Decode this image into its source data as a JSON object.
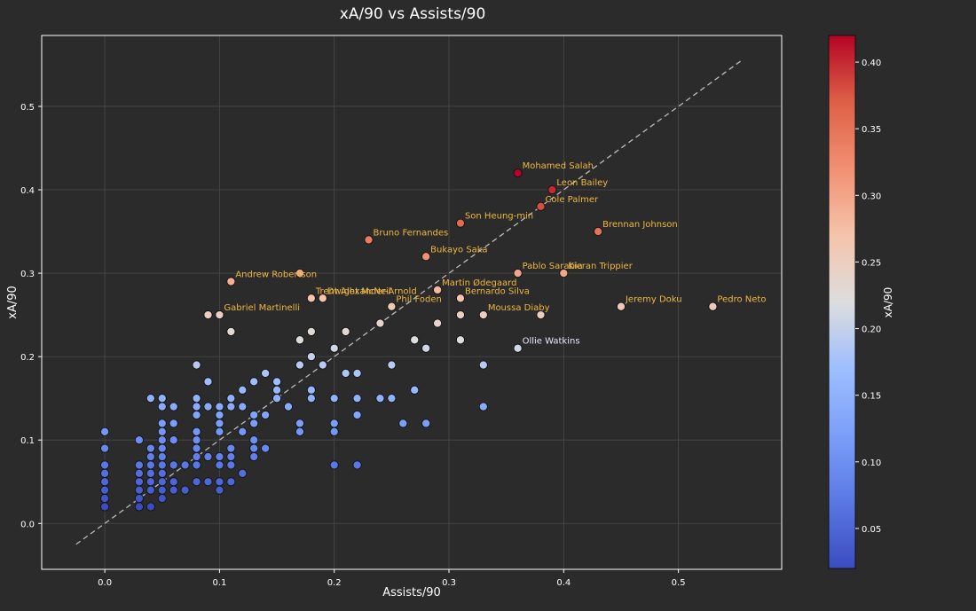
{
  "chart_data": {
    "type": "scatter",
    "title": "xA/90 vs Assists/90",
    "xlabel": "Assists/90",
    "ylabel": "xA/90",
    "xlim": [
      -0.055,
      0.59
    ],
    "ylim": [
      -0.055,
      0.585
    ],
    "x_ticks": [
      "0.0",
      "0.1",
      "0.2",
      "0.3",
      "0.4",
      "0.5"
    ],
    "y_ticks": [
      "0.0",
      "0.1",
      "0.2",
      "0.3",
      "0.4",
      "0.5"
    ],
    "grid": true,
    "reference_line": {
      "style": "dashed",
      "from": [
        -0.025,
        -0.025
      ],
      "to": [
        0.555,
        0.555
      ]
    },
    "colorbar": {
      "label": "xA/90",
      "colormap": "coolwarm",
      "range": [
        0.02,
        0.42
      ],
      "ticks": [
        "0.05",
        "0.10",
        "0.15",
        "0.20",
        "0.25",
        "0.30",
        "0.35",
        "0.40"
      ]
    },
    "colors": {
      "background": "#2b2b2b",
      "axis": "#ffffff",
      "grid": "#4a4a4a",
      "label_highlight": "#f0b840",
      "label_plain": "#e8e8ff",
      "marker_edge": "#111111"
    },
    "labeled_points": [
      {
        "name": "Mohamed Salah",
        "x": 0.36,
        "y": 0.42
      },
      {
        "name": "Leon Bailey",
        "x": 0.39,
        "y": 0.4
      },
      {
        "name": "Cole Palmer",
        "x": 0.38,
        "y": 0.38
      },
      {
        "name": "Son Heung-min",
        "x": 0.31,
        "y": 0.36
      },
      {
        "name": "Brennan Johnson",
        "x": 0.43,
        "y": 0.35
      },
      {
        "name": "Bruno Fernandes",
        "x": 0.23,
        "y": 0.34
      },
      {
        "name": "Bukayo Saka",
        "x": 0.28,
        "y": 0.32
      },
      {
        "name": "Andrew Robertson",
        "x": 0.11,
        "y": 0.29
      },
      {
        "name": "Pablo Sarabia",
        "x": 0.36,
        "y": 0.3
      },
      {
        "name": "Kieran Trippier",
        "x": 0.4,
        "y": 0.3
      },
      {
        "name": "Trent Alexander-Arnold",
        "x": 0.18,
        "y": 0.27
      },
      {
        "name": "Martin Ødegaard",
        "x": 0.29,
        "y": 0.28
      },
      {
        "name": "Dwight McNeil",
        "x": 0.19,
        "y": 0.27
      },
      {
        "name": "Bernardo Silva",
        "x": 0.31,
        "y": 0.27
      },
      {
        "name": "Phil Foden",
        "x": 0.25,
        "y": 0.26
      },
      {
        "name": "Gabriel Martinelli",
        "x": 0.1,
        "y": 0.25
      },
      {
        "name": "Moussa Diaby",
        "x": 0.33,
        "y": 0.25
      },
      {
        "name": "Jeremy Doku",
        "x": 0.45,
        "y": 0.26
      },
      {
        "name": "Pedro Neto",
        "x": 0.53,
        "y": 0.26
      },
      {
        "name": "Ollie Watkins",
        "x": 0.36,
        "y": 0.21
      }
    ],
    "points": [
      [
        0.17,
        0.3
      ],
      [
        0.09,
        0.25
      ],
      [
        0.1,
        0.25
      ],
      [
        0.29,
        0.24
      ],
      [
        0.24,
        0.24
      ],
      [
        0.31,
        0.25
      ],
      [
        0.38,
        0.25
      ],
      [
        0.11,
        0.23
      ],
      [
        0.18,
        0.23
      ],
      [
        0.21,
        0.23
      ],
      [
        0.17,
        0.22
      ],
      [
        0.27,
        0.22
      ],
      [
        0.31,
        0.22
      ],
      [
        0.2,
        0.21
      ],
      [
        0.28,
        0.21
      ],
      [
        0.18,
        0.2
      ],
      [
        0.08,
        0.19
      ],
      [
        0.17,
        0.19
      ],
      [
        0.19,
        0.19
      ],
      [
        0.25,
        0.19
      ],
      [
        0.33,
        0.19
      ],
      [
        0.14,
        0.18
      ],
      [
        0.21,
        0.18
      ],
      [
        0.22,
        0.18
      ],
      [
        0.09,
        0.17
      ],
      [
        0.13,
        0.17
      ],
      [
        0.15,
        0.17
      ],
      [
        0.12,
        0.16
      ],
      [
        0.15,
        0.16
      ],
      [
        0.18,
        0.16
      ],
      [
        0.27,
        0.16
      ],
      [
        0.04,
        0.15
      ],
      [
        0.05,
        0.15
      ],
      [
        0.08,
        0.15
      ],
      [
        0.11,
        0.15
      ],
      [
        0.15,
        0.15
      ],
      [
        0.18,
        0.15
      ],
      [
        0.2,
        0.15
      ],
      [
        0.22,
        0.15
      ],
      [
        0.24,
        0.15
      ],
      [
        0.25,
        0.15
      ],
      [
        0.05,
        0.14
      ],
      [
        0.06,
        0.14
      ],
      [
        0.08,
        0.14
      ],
      [
        0.09,
        0.14
      ],
      [
        0.1,
        0.14
      ],
      [
        0.11,
        0.14
      ],
      [
        0.12,
        0.14
      ],
      [
        0.16,
        0.14
      ],
      [
        0.33,
        0.14
      ],
      [
        0.08,
        0.13
      ],
      [
        0.1,
        0.13
      ],
      [
        0.13,
        0.13
      ],
      [
        0.14,
        0.13
      ],
      [
        0.22,
        0.13
      ],
      [
        0.05,
        0.12
      ],
      [
        0.06,
        0.12
      ],
      [
        0.1,
        0.12
      ],
      [
        0.13,
        0.12
      ],
      [
        0.17,
        0.12
      ],
      [
        0.2,
        0.12
      ],
      [
        0.26,
        0.12
      ],
      [
        0.28,
        0.12
      ],
      [
        0.05,
        0.11
      ],
      [
        0.08,
        0.11
      ],
      [
        0.1,
        0.11
      ],
      [
        0.12,
        0.11
      ],
      [
        0.17,
        0.11
      ],
      [
        0.2,
        0.11
      ],
      [
        0.0,
        0.11
      ],
      [
        0.03,
        0.1
      ],
      [
        0.05,
        0.1
      ],
      [
        0.06,
        0.1
      ],
      [
        0.08,
        0.1
      ],
      [
        0.13,
        0.1
      ],
      [
        0.0,
        0.09
      ],
      [
        0.04,
        0.09
      ],
      [
        0.05,
        0.09
      ],
      [
        0.08,
        0.09
      ],
      [
        0.11,
        0.09
      ],
      [
        0.13,
        0.09
      ],
      [
        0.14,
        0.09
      ],
      [
        0.04,
        0.08
      ],
      [
        0.05,
        0.08
      ],
      [
        0.08,
        0.08
      ],
      [
        0.09,
        0.08
      ],
      [
        0.1,
        0.08
      ],
      [
        0.11,
        0.08
      ],
      [
        0.13,
        0.08
      ],
      [
        0.0,
        0.07
      ],
      [
        0.03,
        0.07
      ],
      [
        0.04,
        0.07
      ],
      [
        0.05,
        0.07
      ],
      [
        0.06,
        0.07
      ],
      [
        0.07,
        0.07
      ],
      [
        0.08,
        0.07
      ],
      [
        0.1,
        0.07
      ],
      [
        0.11,
        0.07
      ],
      [
        0.2,
        0.07
      ],
      [
        0.22,
        0.07
      ],
      [
        0.0,
        0.06
      ],
      [
        0.03,
        0.06
      ],
      [
        0.04,
        0.06
      ],
      [
        0.05,
        0.06
      ],
      [
        0.12,
        0.06
      ],
      [
        0.0,
        0.05
      ],
      [
        0.03,
        0.05
      ],
      [
        0.04,
        0.05
      ],
      [
        0.05,
        0.05
      ],
      [
        0.06,
        0.05
      ],
      [
        0.08,
        0.05
      ],
      [
        0.09,
        0.05
      ],
      [
        0.1,
        0.05
      ],
      [
        0.11,
        0.05
      ],
      [
        0.0,
        0.04
      ],
      [
        0.03,
        0.04
      ],
      [
        0.04,
        0.04
      ],
      [
        0.05,
        0.04
      ],
      [
        0.06,
        0.04
      ],
      [
        0.07,
        0.04
      ],
      [
        0.1,
        0.04
      ],
      [
        0.0,
        0.03
      ],
      [
        0.03,
        0.03
      ],
      [
        0.05,
        0.03
      ],
      [
        0.0,
        0.02
      ],
      [
        0.03,
        0.02
      ],
      [
        0.04,
        0.02
      ]
    ]
  }
}
